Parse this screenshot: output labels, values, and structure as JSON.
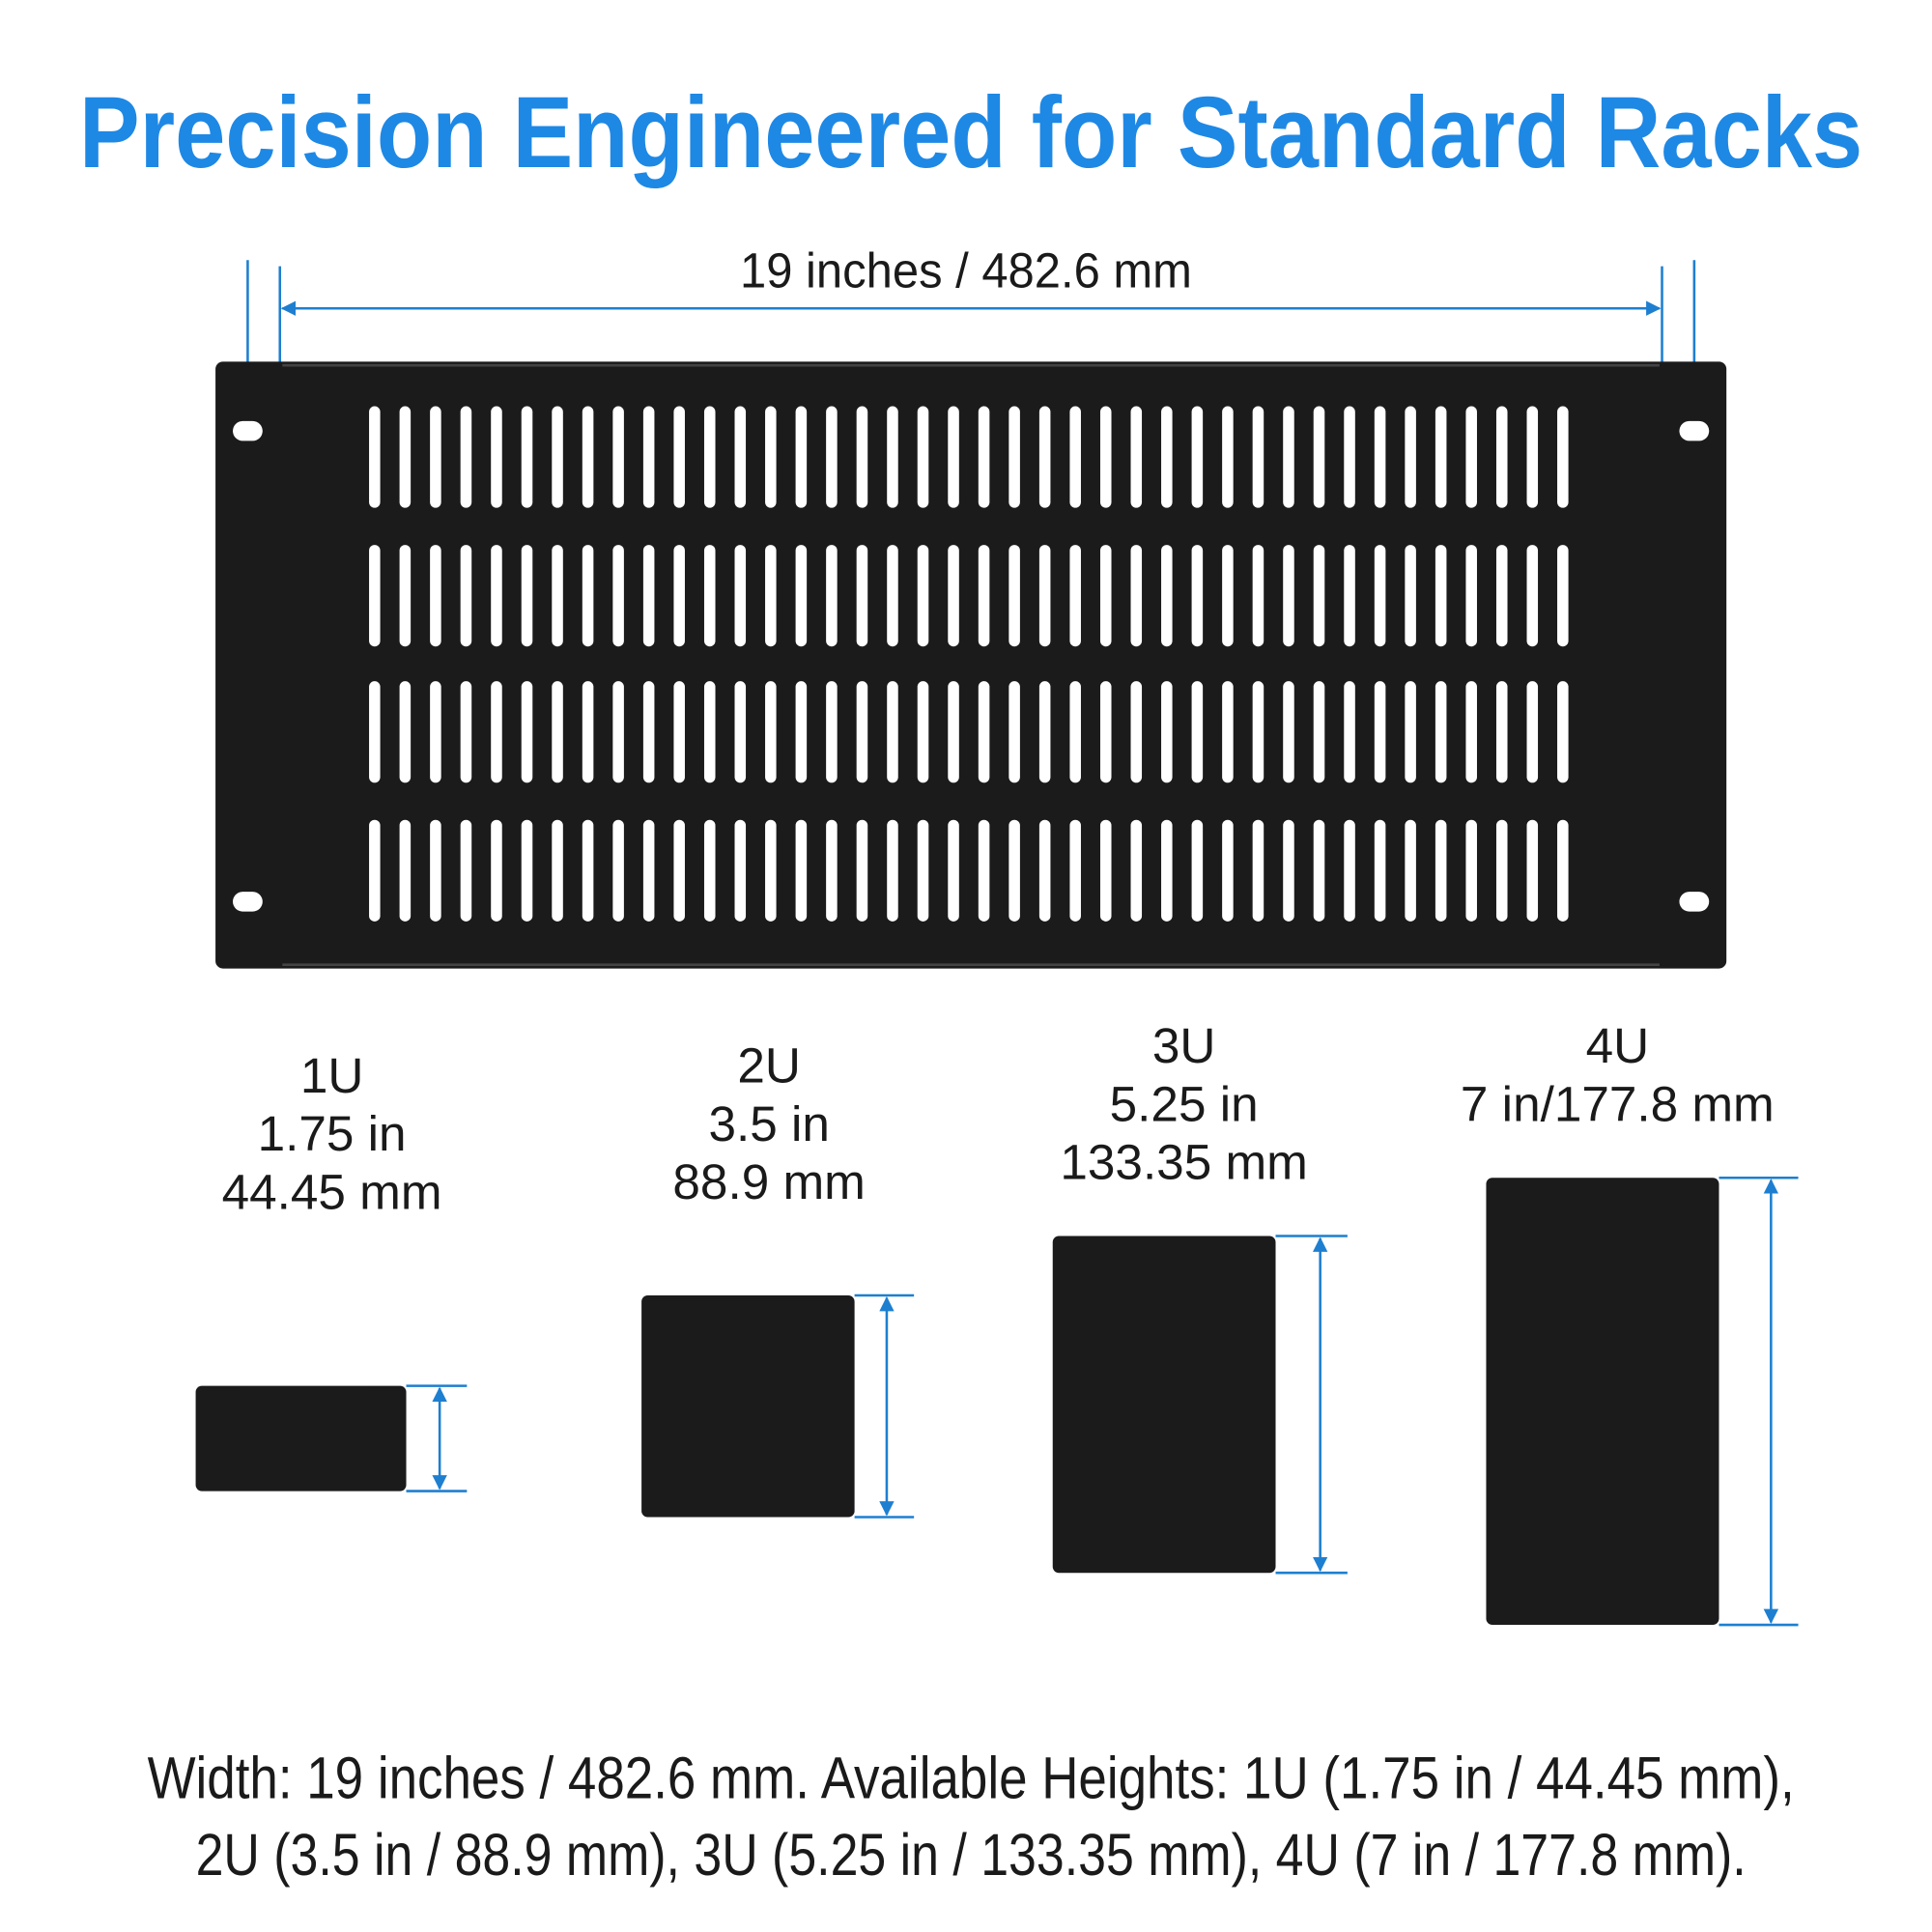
{
  "title": "Precision Engineered for Standard Racks",
  "width_label": "19 inches / 482.6 mm",
  "panels": [
    {
      "lines": [
        "1U",
        "1.75 in",
        "44.45 mm"
      ]
    },
    {
      "lines": [
        "2U",
        "3.5 in",
        "88.9 mm"
      ]
    },
    {
      "lines": [
        "3U",
        "5.25 in",
        "133.35 mm"
      ]
    },
    {
      "lines": [
        "4U",
        "7 in/177.8 mm"
      ]
    }
  ],
  "caption": {
    "lines": [
      "Width: 19 inches / 482.6 mm. Available Heights: 1U (1.75 in / 44.45 mm),",
      "2U (3.5 in / 88.9 mm), 3U (5.25 in / 133.35 mm), 4U (7 in / 177.8 mm)."
    ]
  }
}
